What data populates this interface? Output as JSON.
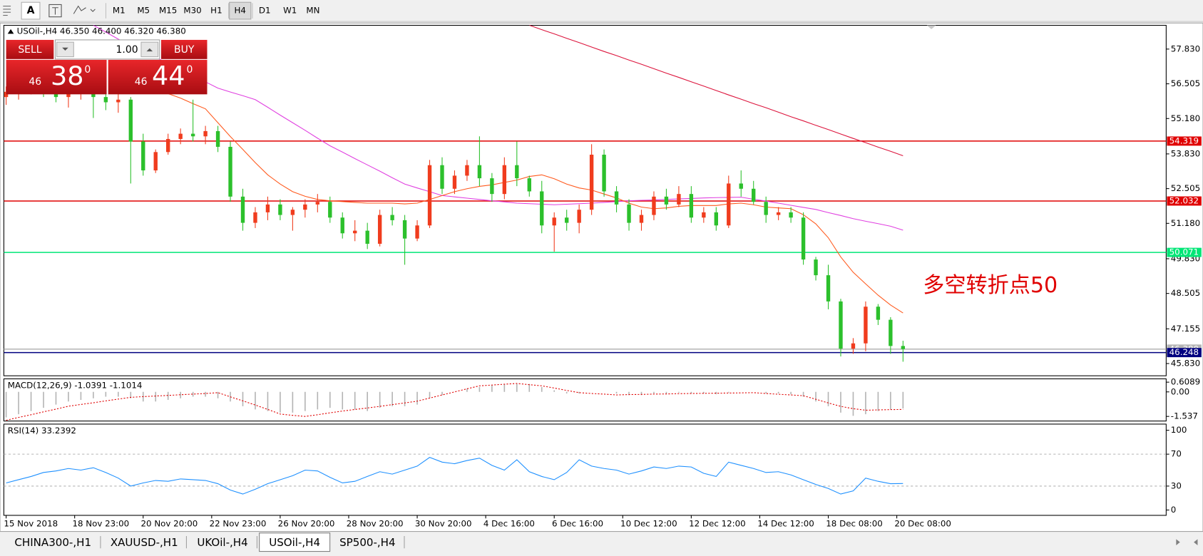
{
  "toolbar": {
    "tools": [
      "A"
    ],
    "timeframes": [
      "M1",
      "M5",
      "M15",
      "M30",
      "H1",
      "H4",
      "D1",
      "W1",
      "MN"
    ],
    "active": 5
  },
  "trade_panel": {
    "sell": "SELL",
    "buy": "BUY",
    "volume": "1.00",
    "bid": {
      "big": "46",
      "main": "38",
      "frac": "0"
    },
    "ask": {
      "big": "46",
      "main": "44",
      "frac": "0"
    }
  },
  "chart_data": [
    {
      "type": "candlestick",
      "title": "USOil-,H4 46.350 46.400 46.320 46.380",
      "up_color": "#f03c1e",
      "down_color": "#2cc02c",
      "open": [
        56.0,
        56.2,
        56.4,
        56.5,
        56.2,
        56.0,
        56.3,
        56.4,
        56.0,
        55.8,
        55.9,
        54.3,
        53.2,
        53.9,
        54.4,
        54.6,
        54.5,
        54.7,
        54.1,
        52.2,
        51.2,
        51.6,
        51.9,
        51.5,
        51.7,
        51.9,
        52.0,
        51.4,
        50.8,
        50.9,
        50.4,
        51.5,
        51.3,
        50.6,
        51.1,
        53.4,
        52.5,
        53.0,
        53.4,
        52.9,
        52.3,
        53.4,
        52.9,
        52.4,
        51.1,
        51.4,
        51.2,
        51.7,
        53.8,
        52.4,
        51.9,
        51.2,
        51.5,
        52.2,
        51.9,
        52.3,
        51.4,
        51.6,
        51.1,
        52.7,
        52.5,
        52.0,
        51.5,
        51.6,
        51.4,
        49.8,
        49.2,
        48.2,
        46.4,
        46.6,
        48.0,
        47.5,
        46.5
      ],
      "high": [
        56.4,
        56.6,
        56.9,
        56.8,
        56.6,
        56.5,
        56.7,
        56.8,
        56.4,
        56.2,
        56.0,
        54.6,
        54.0,
        54.6,
        54.8,
        55.9,
        54.9,
        54.9,
        54.3,
        52.5,
        51.8,
        52.2,
        52.1,
        51.8,
        52.1,
        52.3,
        52.2,
        51.6,
        51.3,
        51.2,
        51.7,
        51.8,
        51.5,
        51.3,
        53.6,
        53.7,
        53.2,
        53.6,
        54.5,
        53.1,
        53.7,
        54.3,
        53.0,
        52.8,
        51.6,
        51.7,
        51.9,
        54.2,
        54.0,
        52.6,
        52.1,
        51.7,
        52.4,
        52.5,
        52.6,
        52.6,
        51.8,
        51.8,
        53.0,
        53.2,
        52.8,
        52.2,
        51.8,
        51.8,
        51.6,
        49.9,
        49.6,
        48.3,
        46.8,
        48.2,
        48.1,
        47.6,
        46.7
      ],
      "low": [
        55.7,
        55.9,
        56.1,
        56.0,
        55.8,
        55.6,
        55.9,
        55.2,
        55.5,
        55.4,
        52.7,
        53.0,
        53.1,
        53.8,
        54.2,
        54.3,
        54.2,
        53.9,
        52.0,
        50.9,
        51.0,
        51.3,
        51.3,
        50.9,
        51.4,
        51.6,
        51.2,
        50.6,
        50.5,
        50.2,
        50.3,
        51.1,
        49.6,
        50.5,
        51.0,
        52.3,
        52.3,
        52.8,
        52.6,
        52.0,
        52.1,
        52.6,
        52.2,
        50.8,
        50.1,
        50.9,
        50.8,
        51.5,
        52.2,
        51.6,
        50.9,
        50.9,
        51.3,
        51.7,
        51.8,
        51.2,
        51.2,
        50.9,
        51.0,
        52.2,
        51.9,
        51.2,
        51.3,
        51.2,
        49.6,
        49.0,
        47.9,
        46.1,
        46.2,
        46.3,
        47.3,
        46.2,
        45.9
      ],
      "close": [
        56.2,
        56.4,
        56.5,
        56.2,
        56.0,
        56.3,
        56.4,
        56.0,
        55.8,
        55.9,
        54.3,
        53.2,
        53.9,
        54.4,
        54.6,
        54.5,
        54.7,
        54.1,
        52.2,
        51.2,
        51.6,
        51.9,
        51.5,
        51.7,
        51.9,
        52.0,
        51.4,
        50.8,
        50.9,
        50.4,
        51.5,
        51.3,
        50.6,
        51.1,
        53.4,
        52.5,
        53.0,
        53.4,
        52.9,
        52.3,
        53.4,
        52.9,
        52.4,
        51.1,
        51.4,
        51.2,
        51.7,
        53.8,
        52.4,
        51.9,
        51.2,
        51.5,
        52.2,
        51.9,
        52.3,
        51.4,
        51.6,
        51.1,
        52.7,
        52.5,
        52.0,
        51.5,
        51.6,
        51.4,
        49.8,
        49.2,
        48.2,
        46.4,
        46.6,
        48.0,
        47.5,
        46.5,
        46.38
      ],
      "series": [
        {
          "color": "#dc143c",
          "values": [
            null,
            null,
            null,
            null,
            null,
            null,
            null,
            null,
            null,
            null,
            null,
            null,
            null,
            null,
            null,
            null,
            null,
            null,
            null,
            null,
            null,
            null,
            null,
            null,
            null,
            null,
            null,
            null,
            null,
            null,
            null,
            null,
            null,
            null,
            null,
            null,
            null,
            null,
            null,
            null,
            null,
            null,
            58.74,
            58.57,
            58.41,
            58.24,
            58.08,
            57.91,
            57.74,
            57.58,
            57.41,
            57.25,
            57.08,
            56.91,
            56.75,
            56.58,
            56.42,
            56.25,
            56.08,
            55.92,
            55.75,
            55.59,
            55.42,
            55.25,
            55.09,
            54.92,
            54.76,
            54.59,
            54.42,
            54.26,
            54.09,
            53.93,
            53.76
          ]
        },
        {
          "color": "#e040e0",
          "values": [
            null,
            null,
            null,
            null,
            null,
            null,
            null,
            58.74,
            58.48,
            58.21,
            57.95,
            57.73,
            57.51,
            57.29,
            57.07,
            56.83,
            56.58,
            56.34,
            56.19,
            56.05,
            55.9,
            55.61,
            55.31,
            55.02,
            54.73,
            54.43,
            54.14,
            53.9,
            53.65,
            53.41,
            53.17,
            52.92,
            52.68,
            52.53,
            52.39,
            52.24,
            52.19,
            52.14,
            52.09,
            52.04,
            52.0,
            51.95,
            51.93,
            51.91,
            51.89,
            51.91,
            51.93,
            51.95,
            51.98,
            52.01,
            52.04,
            52.06,
            52.07,
            52.09,
            52.11,
            52.13,
            52.15,
            52.16,
            52.17,
            52.18,
            52.1,
            52.03,
            51.95,
            51.87,
            51.79,
            51.71,
            51.59,
            51.48,
            51.36,
            51.26,
            51.17,
            51.07,
            50.92
          ]
        },
        {
          "color": "#ff5a1e",
          "values": [
            null,
            null,
            null,
            null,
            null,
            null,
            null,
            null,
            null,
            null,
            null,
            null,
            null,
            56.13,
            55.96,
            55.75,
            55.55,
            55.02,
            54.49,
            54.0,
            53.5,
            53.03,
            52.68,
            52.39,
            52.21,
            52.09,
            52.04,
            52.01,
            51.98,
            51.95,
            51.95,
            51.95,
            51.92,
            51.95,
            52.09,
            52.24,
            52.39,
            52.5,
            52.59,
            52.65,
            52.74,
            52.83,
            52.97,
            53.03,
            52.88,
            52.68,
            52.53,
            52.45,
            52.3,
            52.15,
            51.95,
            51.8,
            51.74,
            51.77,
            51.83,
            51.86,
            51.86,
            51.86,
            51.92,
            51.95,
            51.89,
            51.8,
            51.77,
            51.74,
            51.51,
            51.16,
            50.63,
            49.9,
            49.31,
            48.87,
            48.44,
            48.06,
            47.76
          ]
        }
      ],
      "hlines": [
        {
          "value": 54.319,
          "color": "#e00000"
        },
        {
          "value": 52.032,
          "color": "#e00000"
        },
        {
          "value": 50.071,
          "color": "#00e676"
        },
        {
          "value": 46.38,
          "label": "46.380",
          "color": "#b4b4b4"
        },
        {
          "value": 46.248,
          "color": "#000080"
        }
      ],
      "annotation": {
        "text": "多空转折点50",
        "color": "#e00000"
      },
      "ylim": [
        45.363,
        58.737
      ],
      "yticks": [
        {
          "value": 57.83,
          "label": "57.830"
        },
        56.505,
        {
          "value": 55.18,
          "label": "55.180"
        },
        {
          "value": 53.83,
          "label": "53.830"
        },
        52.505,
        {
          "value": 51.18,
          "label": "51.180"
        },
        {
          "value": 49.83,
          "label": "49.830"
        },
        48.505,
        47.155,
        {
          "value": 45.83,
          "label": "45.830"
        }
      ],
      "xticks": [
        {
          "value": 0,
          "label": "15 Nov 2018"
        },
        {
          "value": 5.5,
          "label": "18 Nov 23:00"
        },
        {
          "value": 11,
          "label": "20 Nov 20:00"
        },
        {
          "value": 16.5,
          "label": "22 Nov 23:00"
        },
        {
          "value": 22,
          "label": "26 Nov 20:00"
        },
        {
          "value": 27.5,
          "label": "28 Nov 20:00"
        },
        {
          "value": 33,
          "label": "30 Nov 20:00"
        },
        {
          "value": 38.5,
          "label": "4 Dec 16:00"
        },
        {
          "value": 44,
          "label": "6 Dec 16:00"
        },
        {
          "value": 49.5,
          "label": "10 Dec 12:00"
        },
        {
          "value": 55,
          "label": "12 Dec 12:00"
        },
        {
          "value": 60.5,
          "label": "14 Dec 12:00"
        },
        {
          "value": 66,
          "label": "18 Dec 08:00"
        },
        {
          "value": 71.5,
          "label": "20 Dec 08:00"
        }
      ]
    },
    {
      "type": "macd",
      "title": "MACD(12,26,9) -1.0391 -1.1014",
      "series": [
        {
          "color": "#b4b4b4",
          "values": [
            -1.6,
            -1.4,
            -1.2,
            -1.0,
            -0.8,
            -0.6,
            -0.5,
            -0.4,
            -0.3,
            -0.3,
            -0.4,
            -0.6,
            -0.6,
            -0.5,
            -0.4,
            -0.3,
            -0.3,
            -0.4,
            -0.6,
            -0.9,
            -1.1,
            -1.2,
            -1.3,
            -1.3,
            -1.2,
            -1.1,
            -1.0,
            -1.1,
            -1.1,
            -1.2,
            -1.0,
            -0.9,
            -0.9,
            -0.8,
            -0.4,
            -0.2,
            0.0,
            0.2,
            0.3,
            0.4,
            0.5,
            0.5,
            0.5,
            0.3,
            0.1,
            -0.1,
            -0.1,
            0.0,
            0.0,
            -0.1,
            -0.2,
            -0.2,
            -0.1,
            -0.1,
            -0.05,
            -0.1,
            -0.1,
            -0.15,
            -0.05,
            0.0,
            0.0,
            -0.1,
            -0.1,
            -0.15,
            -0.3,
            -0.6,
            -0.9,
            -1.3,
            -1.5,
            -1.4,
            -1.2,
            -1.1,
            -1.04
          ]
        },
        {
          "color": "#e00000",
          "values": [
            -1.78,
            -1.6,
            -1.43,
            -1.25,
            -1.08,
            -0.9,
            -0.79,
            -0.68,
            -0.56,
            -0.45,
            -0.34,
            -0.3,
            -0.26,
            -0.22,
            -0.18,
            -0.14,
            -0.1,
            -0.05,
            -0.31,
            -0.56,
            -0.82,
            -1.1,
            -1.39,
            -1.47,
            -1.54,
            -1.43,
            -1.31,
            -1.2,
            -1.1,
            -1.01,
            -0.91,
            -0.8,
            -0.69,
            -0.58,
            -0.39,
            -0.19,
            0.0,
            0.19,
            0.38,
            0.43,
            0.48,
            0.53,
            0.45,
            0.38,
            0.24,
            0.09,
            -0.05,
            -0.1,
            -0.14,
            -0.19,
            -0.17,
            -0.16,
            -0.14,
            -0.13,
            -0.11,
            -0.1,
            -0.09,
            -0.08,
            -0.07,
            -0.06,
            -0.05,
            -0.1,
            -0.15,
            -0.19,
            -0.24,
            -0.46,
            -0.69,
            -0.91,
            -1.05,
            -1.15,
            -1.13,
            -1.11,
            -1.1
          ]
        }
      ],
      "ylim": [
        -1.826,
        0.817
      ],
      "yticks": [
        0.6089,
        {
          "value": 0,
          "label": "0.00"
        },
        -1.537
      ]
    },
    {
      "type": "line",
      "title": "RSI(14) 33.2392",
      "series": [
        {
          "color": "#1e90ff",
          "values": [
            34,
            38,
            42,
            47,
            49,
            52,
            50,
            53,
            47,
            40,
            30,
            34,
            37,
            36,
            39,
            38,
            37,
            33,
            25,
            20,
            26,
            33,
            38,
            43,
            50,
            49,
            41,
            34,
            36,
            42,
            48,
            45,
            50,
            55,
            66,
            60,
            58,
            62,
            65,
            56,
            50,
            63,
            48,
            42,
            38,
            47,
            63,
            55,
            52,
            50,
            45,
            49,
            54,
            52,
            55,
            54,
            46,
            42,
            60,
            56,
            52,
            47,
            48,
            44,
            38,
            32,
            27,
            20,
            24,
            40,
            36,
            33,
            33.24
          ]
        }
      ],
      "levels": [
        70,
        30
      ],
      "ylim": [
        -6.7,
        107.7
      ],
      "yticks": [
        100,
        70,
        30,
        0
      ]
    }
  ],
  "tabs": {
    "items": [
      "CHINA300-,H1",
      "XAUUSD-,H1",
      "UKOil-,H4",
      "USOil-,H4",
      "SP500-,H4"
    ],
    "active": 3
  }
}
